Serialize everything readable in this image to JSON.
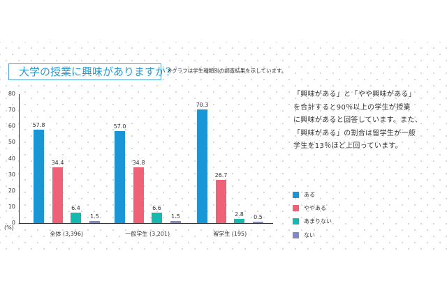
{
  "title": "大学の授業に興味がありますか？",
  "note": "※グラフは学生種類別の調査結果を示しています。",
  "description": [
    "「興味がある」と「やや興味がある」",
    "を合計すると90％以上の学生が授業",
    "に興味があると回答しています。また、",
    "「興味がある」の割合は留学生が一般",
    "学生を13％ほど上回っています。"
  ],
  "y_unit": "(%)",
  "legend": [
    {
      "label": "ある",
      "color": "#1a96d4"
    },
    {
      "label": "ややある",
      "color": "#ee6176"
    },
    {
      "label": "あまりない",
      "color": "#17b8b0"
    },
    {
      "label": "ない",
      "color": "#8088c8"
    }
  ],
  "chart_data": {
    "type": "bar",
    "title": "大学の授業に興味がありますか？",
    "subtitle": "※グラフは学生種類別の調査結果を示しています。",
    "xlabel": "",
    "ylabel": "(%)",
    "ylim": [
      0,
      80
    ],
    "yticks": [
      0,
      10,
      20,
      30,
      40,
      50,
      60,
      70,
      80
    ],
    "grid": false,
    "legend_position": "right",
    "categories": [
      "全体 (3,396)",
      "一般学生 (3,201)",
      "留学生 (195)"
    ],
    "series": [
      {
        "name": "ある",
        "color": "#1a96d4",
        "values": [
          57.8,
          57.0,
          70.3
        ]
      },
      {
        "name": "ややある",
        "color": "#ee6176",
        "values": [
          34.4,
          34.8,
          26.7
        ]
      },
      {
        "name": "あまりない",
        "color": "#17b8b0",
        "values": [
          6.4,
          6.6,
          2.8
        ]
      },
      {
        "name": "ない",
        "color": "#8088c8",
        "values": [
          1.5,
          1.5,
          0.5
        ]
      }
    ]
  }
}
